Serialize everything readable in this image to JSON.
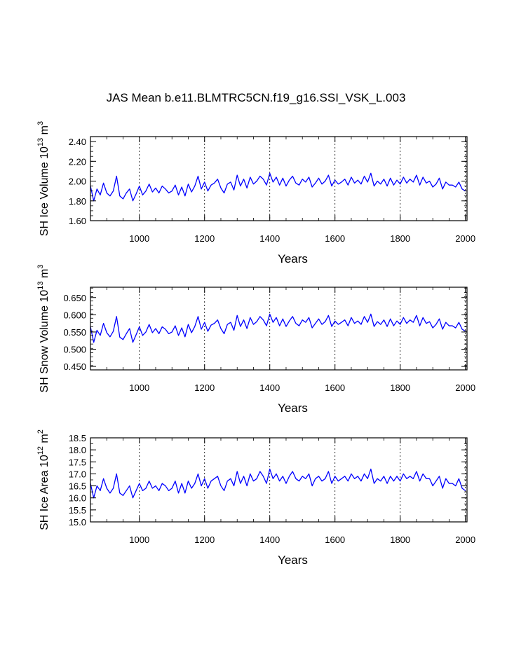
{
  "title": "JAS Mean b.e11.BLMTRC5CN.f19_g16.SSI_VSK_L.003",
  "colors": {
    "series": "#0000ff",
    "axis": "#000000",
    "grid": "#000000"
  },
  "chart_data": [
    {
      "type": "line",
      "ylabel_main": "SH Ice Volume 10",
      "ylabel_exp": "13",
      "ylabel_unit": " m",
      "ylabel_unit_exp": "3",
      "xlabel": "Years",
      "xlim": [
        850,
        2005
      ],
      "ylim": [
        1.6,
        2.45
      ],
      "xticks": [
        1000,
        1200,
        1400,
        1600,
        1800,
        2000
      ],
      "yticks": [
        1.6,
        1.8,
        2.0,
        2.2,
        2.4
      ],
      "ytick_labels": [
        "1.60",
        "1.80",
        "2.00",
        "2.20",
        "2.40"
      ],
      "yminor": 0.05,
      "grid_x": true,
      "series": [
        {
          "x_start": 850,
          "x_step": 10,
          "values": [
            1.95,
            1.8,
            1.92,
            1.86,
            1.98,
            1.88,
            1.85,
            1.9,
            2.05,
            1.85,
            1.82,
            1.88,
            1.92,
            1.8,
            1.87,
            1.95,
            1.86,
            1.9,
            1.97,
            1.89,
            1.93,
            1.88,
            1.95,
            1.92,
            1.88,
            1.9,
            1.96,
            1.86,
            1.94,
            1.85,
            1.97,
            1.89,
            1.95,
            2.05,
            1.92,
            1.99,
            1.9,
            1.96,
            1.98,
            2.02,
            1.93,
            1.88,
            1.97,
            1.99,
            1.91,
            2.06,
            1.95,
            2.02,
            1.93,
            2.04,
            1.97,
            2.0,
            2.05,
            2.02,
            1.96,
            2.08,
            1.99,
            2.04,
            1.96,
            2.03,
            1.95,
            2.01,
            2.05,
            1.98,
            1.96,
            2.02,
            1.99,
            2.04,
            1.94,
            1.98,
            2.03,
            1.97,
            2.0,
            2.06,
            1.95,
            2.01,
            1.97,
            1.99,
            2.02,
            1.96,
            2.04,
            1.98,
            2.01,
            1.97,
            2.05,
            1.99,
            2.08,
            1.95,
            2.0,
            1.97,
            2.02,
            1.95,
            2.03,
            1.96,
            2.01,
            1.97,
            2.04,
            1.98,
            2.02,
            1.99,
            2.06,
            1.96,
            2.04,
            1.98,
            2.0,
            1.94,
            1.97,
            2.03,
            1.92,
            1.99,
            1.96,
            1.96,
            1.94,
            1.99,
            1.92,
            1.9
          ]
        }
      ]
    },
    {
      "type": "line",
      "ylabel_main": "SH Snow Volume 10",
      "ylabel_exp": "13",
      "ylabel_unit": " m",
      "ylabel_unit_exp": "3",
      "xlabel": "Years",
      "xlim": [
        850,
        2005
      ],
      "ylim": [
        0.44,
        0.68
      ],
      "xticks": [
        1000,
        1200,
        1400,
        1600,
        1800,
        2000
      ],
      "yticks": [
        0.45,
        0.5,
        0.55,
        0.6,
        0.65
      ],
      "ytick_labels": [
        "0.450",
        "0.500",
        "0.550",
        "0.600",
        "0.650"
      ],
      "yminor": 0.0125,
      "grid_x": true,
      "series": [
        {
          "x_start": 850,
          "x_step": 10,
          "values": [
            0.565,
            0.52,
            0.555,
            0.54,
            0.575,
            0.548,
            0.536,
            0.552,
            0.595,
            0.535,
            0.528,
            0.545,
            0.56,
            0.52,
            0.542,
            0.565,
            0.54,
            0.55,
            0.572,
            0.548,
            0.56,
            0.545,
            0.565,
            0.558,
            0.545,
            0.55,
            0.568,
            0.54,
            0.562,
            0.536,
            0.572,
            0.548,
            0.566,
            0.595,
            0.558,
            0.578,
            0.552,
            0.57,
            0.575,
            0.585,
            0.56,
            0.545,
            0.572,
            0.578,
            0.555,
            0.598,
            0.566,
            0.585,
            0.56,
            0.592,
            0.572,
            0.58,
            0.595,
            0.585,
            0.568,
            0.602,
            0.578,
            0.592,
            0.568,
            0.588,
            0.566,
            0.582,
            0.595,
            0.575,
            0.568,
            0.585,
            0.578,
            0.592,
            0.562,
            0.575,
            0.588,
            0.572,
            0.58,
            0.598,
            0.566,
            0.582,
            0.572,
            0.578,
            0.585,
            0.568,
            0.592,
            0.575,
            0.582,
            0.572,
            0.595,
            0.578,
            0.602,
            0.566,
            0.58,
            0.572,
            0.585,
            0.566,
            0.588,
            0.568,
            0.582,
            0.572,
            0.592,
            0.575,
            0.585,
            0.578,
            0.598,
            0.568,
            0.592,
            0.575,
            0.58,
            0.562,
            0.572,
            0.588,
            0.558,
            0.578,
            0.568,
            0.568,
            0.562,
            0.578,
            0.558,
            0.552
          ]
        }
      ]
    },
    {
      "type": "line",
      "ylabel_main": "SH Ice Area 10",
      "ylabel_exp": "12",
      "ylabel_unit": " m",
      "ylabel_unit_exp": "2",
      "xlabel": "Years",
      "xlim": [
        850,
        2005
      ],
      "ylim": [
        15.0,
        18.5
      ],
      "xticks": [
        1000,
        1200,
        1400,
        1600,
        1800,
        2000
      ],
      "yticks": [
        15.0,
        15.5,
        16.0,
        16.5,
        17.0,
        17.5,
        18.0,
        18.5
      ],
      "ytick_labels": [
        "15.0",
        "15.5",
        "16.0",
        "16.5",
        "17.0",
        "17.5",
        "18.0",
        "18.5"
      ],
      "yminor": 0.25,
      "grid_x": true,
      "series": [
        {
          "x_start": 850,
          "x_step": 10,
          "values": [
            16.6,
            16.0,
            16.5,
            16.3,
            16.8,
            16.4,
            16.2,
            16.4,
            17.0,
            16.2,
            16.1,
            16.3,
            16.5,
            16.0,
            16.3,
            16.6,
            16.3,
            16.4,
            16.7,
            16.4,
            16.5,
            16.3,
            16.6,
            16.5,
            16.3,
            16.4,
            16.7,
            16.2,
            16.6,
            16.2,
            16.7,
            16.4,
            16.6,
            17.0,
            16.5,
            16.8,
            16.4,
            16.7,
            16.8,
            16.9,
            16.5,
            16.3,
            16.7,
            16.8,
            16.5,
            17.1,
            16.6,
            16.9,
            16.5,
            17.0,
            16.7,
            16.8,
            17.1,
            16.9,
            16.6,
            17.2,
            16.8,
            17.0,
            16.7,
            16.9,
            16.6,
            16.9,
            17.1,
            16.8,
            16.7,
            16.9,
            16.8,
            17.0,
            16.5,
            16.8,
            16.9,
            16.7,
            16.8,
            17.1,
            16.6,
            16.9,
            16.7,
            16.8,
            16.9,
            16.7,
            17.0,
            16.8,
            16.9,
            16.7,
            17.0,
            16.8,
            17.2,
            16.6,
            16.8,
            16.7,
            16.9,
            16.6,
            16.9,
            16.7,
            16.9,
            16.7,
            17.0,
            16.8,
            16.9,
            16.8,
            17.1,
            16.7,
            17.0,
            16.8,
            16.8,
            16.5,
            16.7,
            16.9,
            16.4,
            16.8,
            16.6,
            16.6,
            16.5,
            16.8,
            16.4,
            16.3
          ]
        }
      ]
    }
  ]
}
